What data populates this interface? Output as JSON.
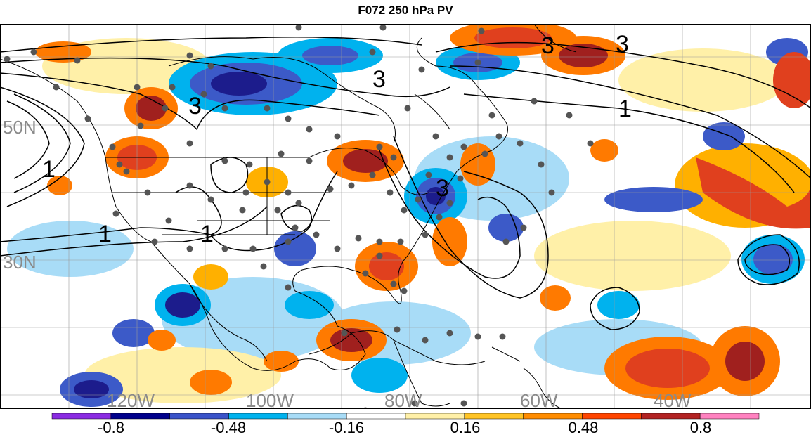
{
  "title": "F072 250 hPa PV",
  "longitude_labels": [
    "120W",
    "100W",
    "80W",
    "60W",
    "40W"
  ],
  "latitude_labels": [
    "50N",
    "30N"
  ],
  "contour_labels": [
    "3",
    "3",
    "3",
    "3",
    "1",
    "1",
    "1",
    "1",
    "3"
  ],
  "colorbar": {
    "ticks": [
      "-0.8",
      "-0.48",
      "-0.16",
      "0.16",
      "0.48",
      "0.8"
    ],
    "colors": [
      "#8a2be2",
      "#00008b",
      "#3a53c9",
      "#00b2ee",
      "#a8dcf7",
      "#ffffff",
      "#fff0a8",
      "#ffc425",
      "#ff8c00",
      "#ff4500",
      "#b22222",
      "#ff82c0"
    ]
  },
  "palette": {
    "deep_blue": "#1c1c8c",
    "blue": "#3c5ac8",
    "cyan": "#00b2ee",
    "light_blue": "#a8dcf7",
    "yellow": "#fff0a8",
    "orange": "#ffb000",
    "dark_orange": "#ff7a00",
    "red": "#e0401e",
    "dark_red": "#a0201e",
    "station_dot": "#555555"
  }
}
